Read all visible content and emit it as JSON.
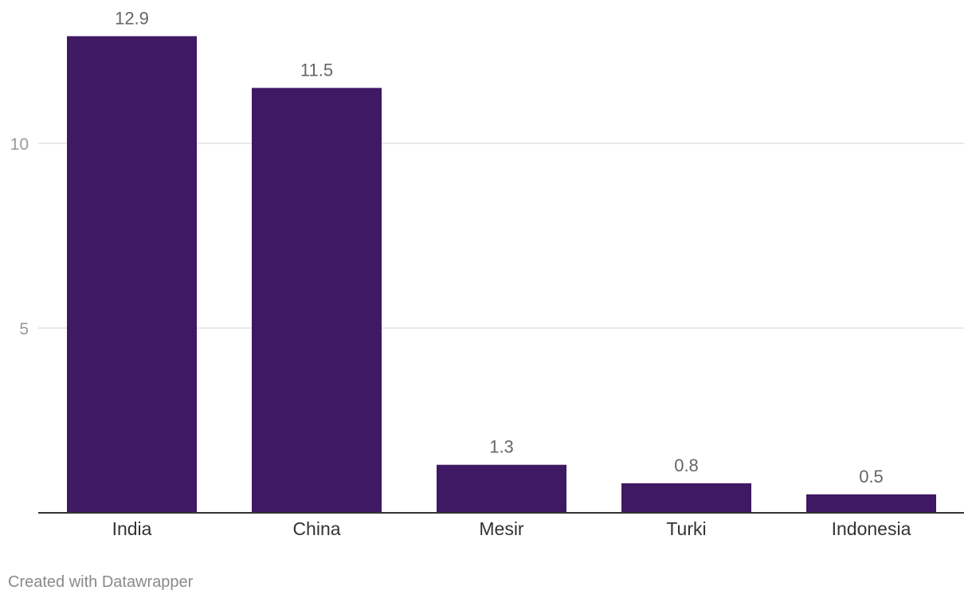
{
  "chart_data": {
    "type": "bar",
    "categories": [
      "India",
      "China",
      "Mesir",
      "Turki",
      "Indonesia"
    ],
    "values": [
      12.9,
      11.5,
      1.3,
      0.8,
      0.5
    ],
    "value_labels": [
      "12.9",
      "11.5",
      "1.3",
      "0.8",
      "0.5"
    ],
    "y_ticks": [
      5,
      10
    ],
    "ylim": [
      0,
      13
    ],
    "grid": true,
    "bar_color": "#3f1963",
    "grid_color": "#e2e2e2",
    "axis_color": "#333333"
  },
  "footer": {
    "credit": "Created with Datawrapper"
  }
}
